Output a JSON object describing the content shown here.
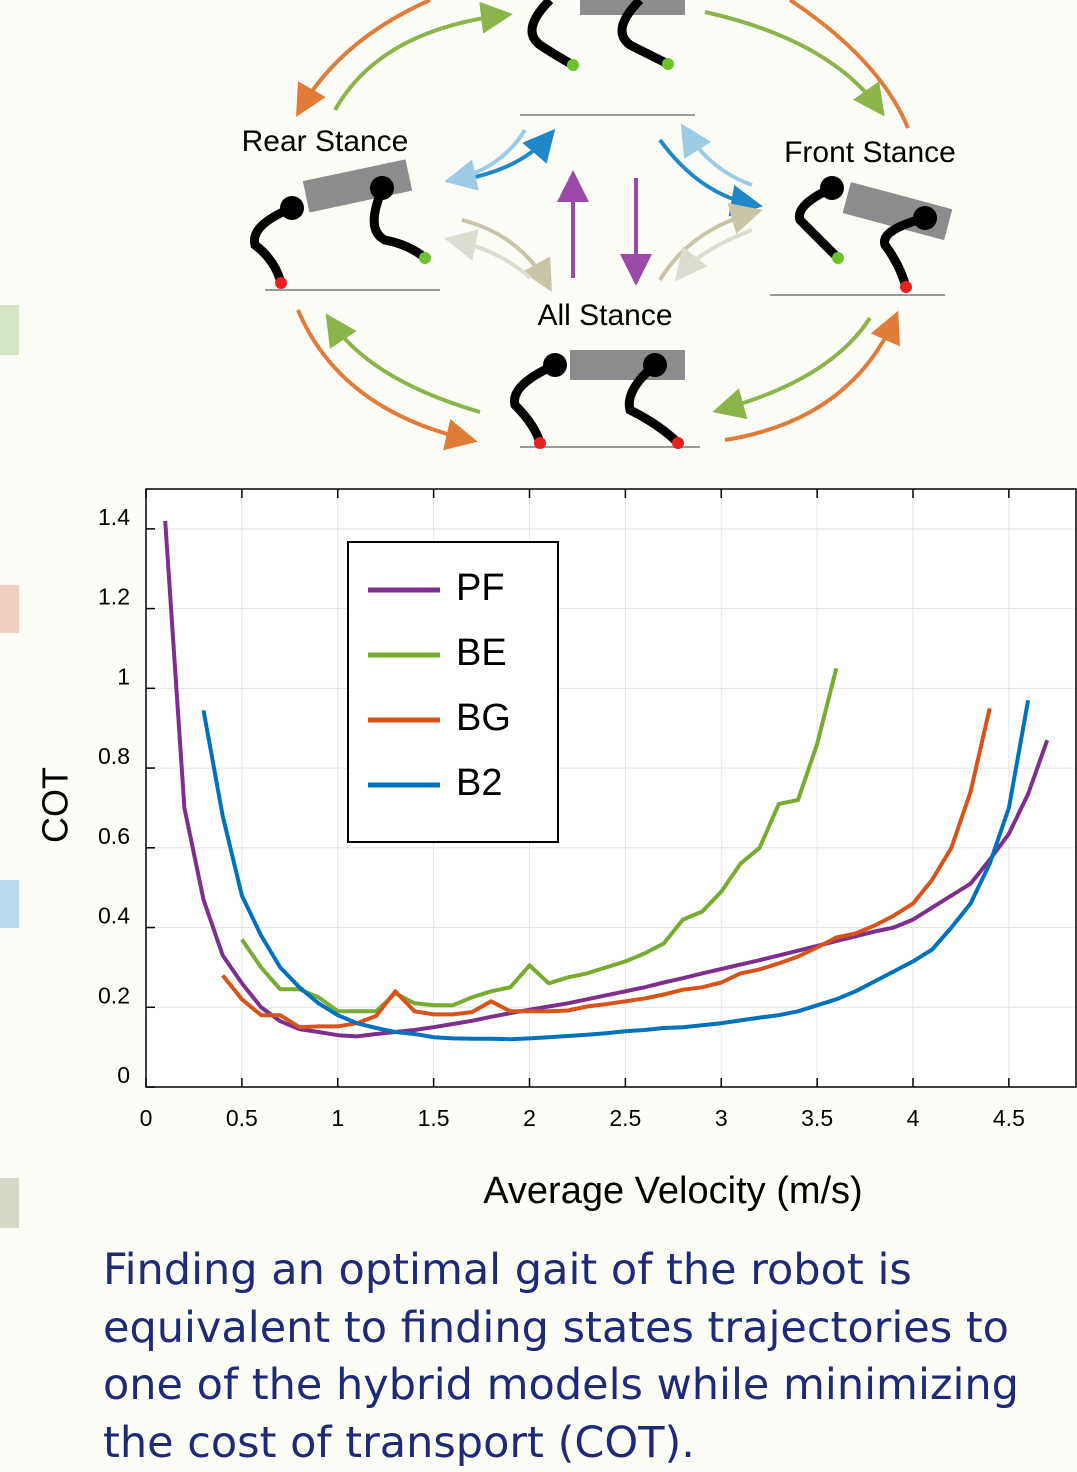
{
  "diagram": {
    "labels": [
      "Rear Stance",
      "Front Stance",
      "All Stance"
    ]
  },
  "chart_data": {
    "type": "line",
    "xlabel": "Average Velocity (m/s)",
    "ylabel": "COT",
    "xlim": [
      0,
      4.85
    ],
    "ylim": [
      0,
      1.5
    ],
    "xticks": [
      0,
      0.5,
      1,
      1.5,
      2,
      2.5,
      3,
      3.5,
      4,
      4.5
    ],
    "yticks": [
      0,
      0.2,
      0.4,
      0.6,
      0.8,
      1,
      1.2,
      1.4
    ],
    "grid": true,
    "legend": "upper left",
    "series": [
      {
        "name": "PF",
        "color": "#7e2f8e",
        "x": [
          0.1,
          0.2,
          0.3,
          0.4,
          0.5,
          0.6,
          0.7,
          0.8,
          0.9,
          1.0,
          1.1,
          1.2,
          1.3,
          1.4,
          1.5,
          1.6,
          1.7,
          1.8,
          1.9,
          2.0,
          2.1,
          2.2,
          2.3,
          2.4,
          2.5,
          2.6,
          2.7,
          2.8,
          2.9,
          3.0,
          3.1,
          3.2,
          3.3,
          3.4,
          3.5,
          3.6,
          3.7,
          3.8,
          3.9,
          4.0,
          4.1,
          4.2,
          4.3,
          4.4,
          4.5,
          4.6,
          4.7
        ],
        "values": [
          1.42,
          0.7,
          0.47,
          0.33,
          0.26,
          0.2,
          0.165,
          0.145,
          0.138,
          0.13,
          0.127,
          0.133,
          0.138,
          0.143,
          0.15,
          0.158,
          0.166,
          0.176,
          0.185,
          0.194,
          0.202,
          0.21,
          0.22,
          0.23,
          0.24,
          0.25,
          0.262,
          0.273,
          0.285,
          0.296,
          0.307,
          0.318,
          0.33,
          0.342,
          0.354,
          0.366,
          0.378,
          0.39,
          0.4,
          0.42,
          0.45,
          0.48,
          0.51,
          0.57,
          0.635,
          0.735,
          0.87
        ]
      },
      {
        "name": "BE",
        "color": "#77ac30",
        "x": [
          0.5,
          0.6,
          0.7,
          0.8,
          0.9,
          1.0,
          1.1,
          1.2,
          1.3,
          1.4,
          1.5,
          1.6,
          1.7,
          1.8,
          1.9,
          2.0,
          2.1,
          2.2,
          2.3,
          2.4,
          2.5,
          2.6,
          2.7,
          2.8,
          2.9,
          3.0,
          3.1,
          3.2,
          3.3,
          3.4,
          3.5,
          3.6
        ],
        "values": [
          0.37,
          0.3,
          0.245,
          0.245,
          0.225,
          0.19,
          0.19,
          0.19,
          0.235,
          0.21,
          0.205,
          0.205,
          0.225,
          0.24,
          0.25,
          0.305,
          0.26,
          0.275,
          0.285,
          0.3,
          0.315,
          0.335,
          0.36,
          0.42,
          0.44,
          0.49,
          0.56,
          0.6,
          0.71,
          0.72,
          0.86,
          1.05
        ]
      },
      {
        "name": "BG",
        "color": "#d95319",
        "x": [
          0.4,
          0.5,
          0.6,
          0.7,
          0.8,
          0.9,
          1.0,
          1.1,
          1.2,
          1.3,
          1.4,
          1.5,
          1.6,
          1.7,
          1.8,
          1.9,
          2.0,
          2.1,
          2.2,
          2.3,
          2.4,
          2.5,
          2.6,
          2.7,
          2.8,
          2.9,
          3.0,
          3.1,
          3.2,
          3.3,
          3.4,
          3.5,
          3.6,
          3.7,
          3.8,
          3.9,
          4.0,
          4.1,
          4.2,
          4.3,
          4.4
        ],
        "values": [
          0.28,
          0.22,
          0.18,
          0.18,
          0.15,
          0.152,
          0.152,
          0.16,
          0.178,
          0.24,
          0.19,
          0.182,
          0.182,
          0.188,
          0.215,
          0.19,
          0.19,
          0.19,
          0.192,
          0.202,
          0.208,
          0.215,
          0.222,
          0.232,
          0.244,
          0.25,
          0.262,
          0.285,
          0.295,
          0.31,
          0.327,
          0.35,
          0.375,
          0.385,
          0.405,
          0.43,
          0.46,
          0.52,
          0.6,
          0.74,
          0.95
        ]
      },
      {
        "name": "B2",
        "color": "#0072bd",
        "x": [
          0.3,
          0.4,
          0.5,
          0.6,
          0.7,
          0.8,
          0.9,
          1.0,
          1.1,
          1.2,
          1.3,
          1.4,
          1.5,
          1.6,
          1.7,
          1.8,
          1.9,
          2.0,
          2.1,
          2.2,
          2.3,
          2.4,
          2.5,
          2.6,
          2.7,
          2.8,
          2.9,
          3.0,
          3.1,
          3.2,
          3.3,
          3.4,
          3.5,
          3.6,
          3.7,
          3.8,
          3.9,
          4.0,
          4.1,
          4.2,
          4.3,
          4.4,
          4.5,
          4.6
        ],
        "values": [
          0.945,
          0.68,
          0.48,
          0.38,
          0.3,
          0.25,
          0.21,
          0.18,
          0.16,
          0.148,
          0.138,
          0.133,
          0.125,
          0.122,
          0.121,
          0.121,
          0.12,
          0.122,
          0.125,
          0.128,
          0.131,
          0.135,
          0.14,
          0.143,
          0.148,
          0.15,
          0.155,
          0.16,
          0.167,
          0.174,
          0.18,
          0.19,
          0.205,
          0.22,
          0.24,
          0.265,
          0.29,
          0.315,
          0.345,
          0.4,
          0.46,
          0.56,
          0.7,
          0.97
        ]
      }
    ]
  },
  "caption": "Finding an optimal gait of the robot is equivalent to finding states trajectories to one of the hybrid models while minimizing the cost of transport (COT)."
}
